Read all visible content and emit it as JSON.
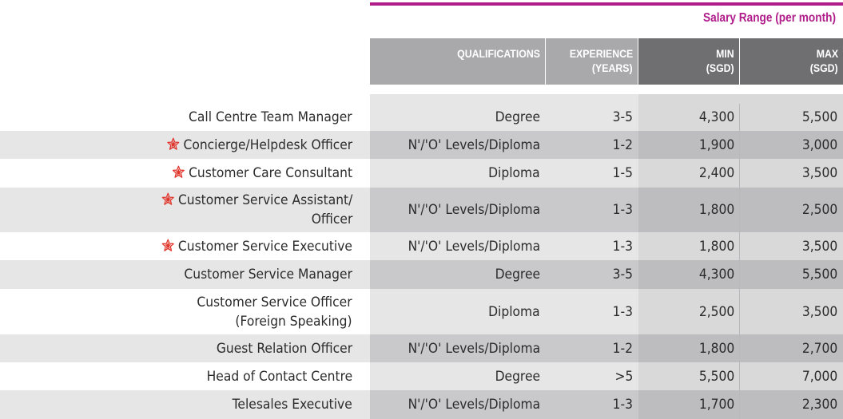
{
  "header": {
    "salary_range": "Salary Range (per month)",
    "qualifications": "QUALIFICATIONS",
    "experience_line1": "EXPERIENCE",
    "experience_line2": "(YEARS)",
    "min_line1": "MIN",
    "min_line2": "(SGD)",
    "max_line1": "MAX",
    "max_line2": "(SGD)"
  },
  "colors": {
    "accent": "#b01d8b",
    "star": "#e0352b"
  },
  "rows": [
    {
      "title_line1": "Call Centre Team Manager",
      "title_line2": "",
      "starred": false,
      "qualification": "Degree",
      "experience": "3-5",
      "min": "4,300",
      "max": "5,500"
    },
    {
      "title_line1": "Concierge/Helpdesk Officer",
      "title_line2": "",
      "starred": true,
      "qualification": "N'/'O' Levels/Diploma",
      "experience": "1-2",
      "min": "1,900",
      "max": "3,000"
    },
    {
      "title_line1": "Customer Care Consultant",
      "title_line2": "",
      "starred": true,
      "qualification": "Diploma",
      "experience": "1-5",
      "min": "2,400",
      "max": "3,500"
    },
    {
      "title_line1": "Customer Service Assistant/",
      "title_line2": "Officer",
      "starred": true,
      "qualification": "N'/'O' Levels/Diploma",
      "experience": "1-3",
      "min": "1,800",
      "max": "2,500"
    },
    {
      "title_line1": "Customer Service Executive",
      "title_line2": "",
      "starred": true,
      "qualification": "N'/'O' Levels/Diploma",
      "experience": "1-3",
      "min": "1,800",
      "max": "3,500"
    },
    {
      "title_line1": "Customer Service Manager",
      "title_line2": "",
      "starred": false,
      "qualification": "Degree",
      "experience": "3-5",
      "min": "4,300",
      "max": "5,500"
    },
    {
      "title_line1": "Customer Service Officer",
      "title_line2": "(Foreign Speaking)",
      "starred": false,
      "qualification": "Diploma",
      "experience": "1-3",
      "min": "2,500",
      "max": "3,500"
    },
    {
      "title_line1": "Guest Relation Officer",
      "title_line2": "",
      "starred": false,
      "qualification": "N'/'O' Levels/Diploma",
      "experience": "1-2",
      "min": "1,800",
      "max": "2,700"
    },
    {
      "title_line1": "Head of Contact Centre",
      "title_line2": "",
      "starred": false,
      "qualification": "Degree",
      "experience": ">5",
      "min": "5,500",
      "max": "7,000"
    },
    {
      "title_line1": "Telesales Executive",
      "title_line2": "",
      "starred": false,
      "qualification": "N'/'O' Levels/Diploma",
      "experience": "1-3",
      "min": "1,700",
      "max": "2,300"
    }
  ]
}
